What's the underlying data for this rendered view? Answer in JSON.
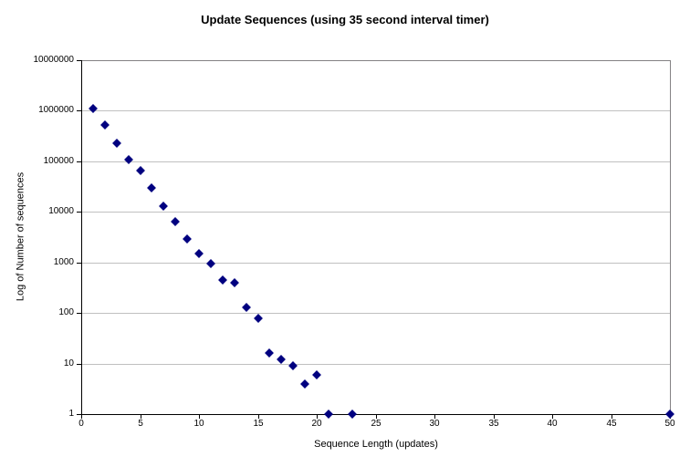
{
  "chart_data": {
    "type": "scatter",
    "title": "Update Sequences (using 35 second interval timer)",
    "xlabel": "Sequence Length (updates)",
    "ylabel": "Log of Number of sequences",
    "y_scale": "log",
    "xlim": [
      0,
      50
    ],
    "ylim": [
      1,
      10000000
    ],
    "x_ticks": [
      0,
      5,
      10,
      15,
      20,
      25,
      30,
      35,
      40,
      45,
      50
    ],
    "y_ticks": [
      1,
      10,
      100,
      1000,
      10000,
      100000,
      1000000,
      10000000
    ],
    "grid": "horizontal-decades-on",
    "legend": "none",
    "marker": {
      "shape": "diamond",
      "size": 7
    },
    "points": [
      {
        "x": 1,
        "y": 1100000
      },
      {
        "x": 2,
        "y": 520000
      },
      {
        "x": 3,
        "y": 230000
      },
      {
        "x": 4,
        "y": 110000
      },
      {
        "x": 5,
        "y": 65000
      },
      {
        "x": 6,
        "y": 30000
      },
      {
        "x": 7,
        "y": 13000
      },
      {
        "x": 8,
        "y": 6500
      },
      {
        "x": 9,
        "y": 2900
      },
      {
        "x": 10,
        "y": 1500
      },
      {
        "x": 11,
        "y": 950
      },
      {
        "x": 12,
        "y": 440
      },
      {
        "x": 13,
        "y": 400
      },
      {
        "x": 14,
        "y": 130
      },
      {
        "x": 15,
        "y": 80
      },
      {
        "x": 16,
        "y": 16
      },
      {
        "x": 17,
        "y": 12
      },
      {
        "x": 18,
        "y": 9
      },
      {
        "x": 19,
        "y": 4
      },
      {
        "x": 20,
        "y": 6
      },
      {
        "x": 21,
        "y": 1
      },
      {
        "x": 23,
        "y": 1
      },
      {
        "x": 50,
        "y": 1
      }
    ],
    "colors": {
      "marker": "#000080",
      "gridline": "#c0c0c0",
      "axis": "#000000",
      "plot_border": "#848284",
      "background": "#ffffff",
      "text": "#000000"
    }
  }
}
